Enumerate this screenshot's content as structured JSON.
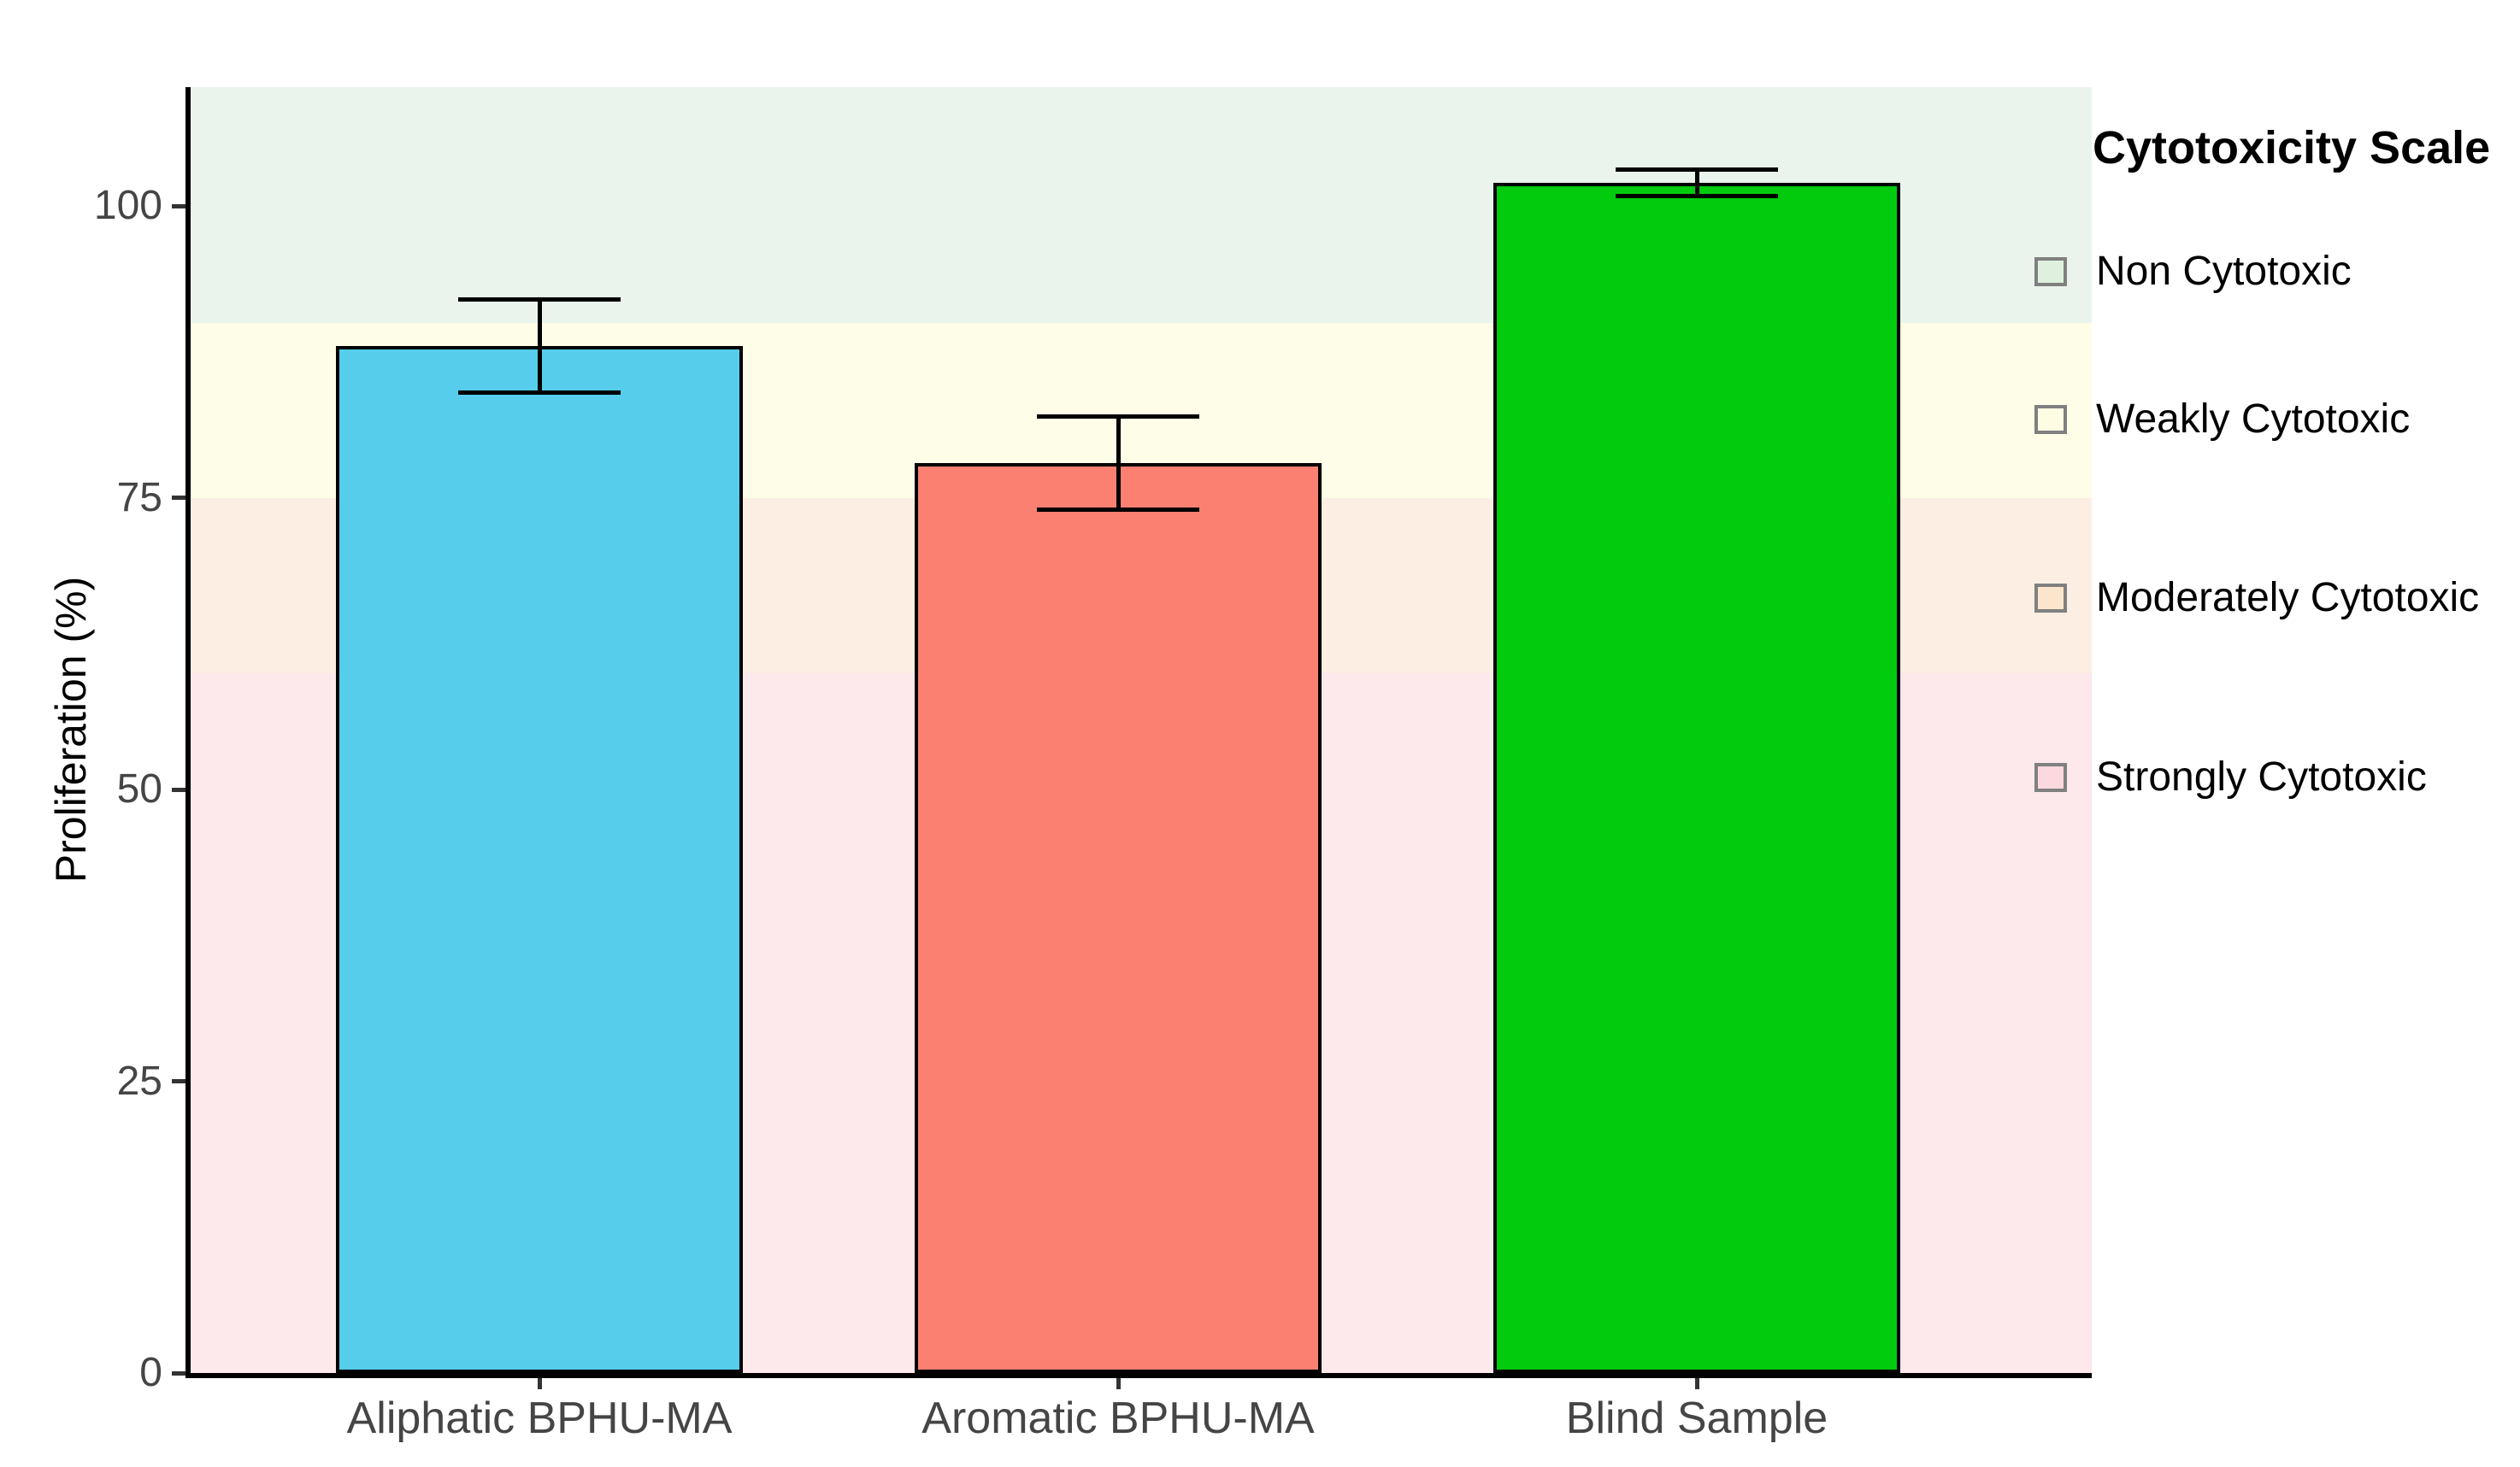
{
  "chart_data": {
    "type": "bar",
    "title": "",
    "xlabel": "",
    "ylabel": "Proliferation (%)",
    "categories": [
      "Aliphatic BPHU-MA",
      "Aromatic BPHU-MA",
      "Blind Sample"
    ],
    "values": [
      88,
      78,
      102
    ],
    "error_bars": [
      4,
      4,
      1.1
    ],
    "bar_colors": [
      "#55CDEB",
      "#FB8072",
      "#00CC0D"
    ],
    "bar_outline_color": "#000000",
    "ylim": [
      0,
      110
    ],
    "yticks": [
      0,
      25,
      50,
      75,
      100
    ],
    "grid": false,
    "legend_position": "right",
    "bands": [
      {
        "label": "Non Cytotoxic",
        "range": [
          90,
          110
        ],
        "color": "#EAF4EC"
      },
      {
        "label": "Weakly Cytotoxic",
        "range": [
          75,
          90
        ],
        "color": "#FEFEE8"
      },
      {
        "label": "Moderately Cytotoxic",
        "range": [
          60,
          75
        ],
        "color": "#FCEEE3"
      },
      {
        "label": "Strongly Cytotoxic",
        "range": [
          0,
          60
        ],
        "color": "#FDE8EB"
      }
    ]
  },
  "legend": {
    "title": "Cytotoxicity Scale",
    "key_border_color": "#808080",
    "items": [
      {
        "label": "Non Cytotoxic",
        "key_fill": "#DFF0DF"
      },
      {
        "label": "Weakly Cytotoxic",
        "key_fill": "#FEFDE3"
      },
      {
        "label": "Moderately Cytotoxic",
        "key_fill": "#FBE5CD"
      },
      {
        "label": "Strongly Cytotoxic",
        "key_fill": "#FBD9DE"
      }
    ]
  },
  "style": {
    "background": "#FFFFFF",
    "axis_line_color": "#000000",
    "tick_color": "#333333",
    "axis_text_color": "#454545",
    "title_text_color": "#000000",
    "error_bar_color": "#000000"
  }
}
